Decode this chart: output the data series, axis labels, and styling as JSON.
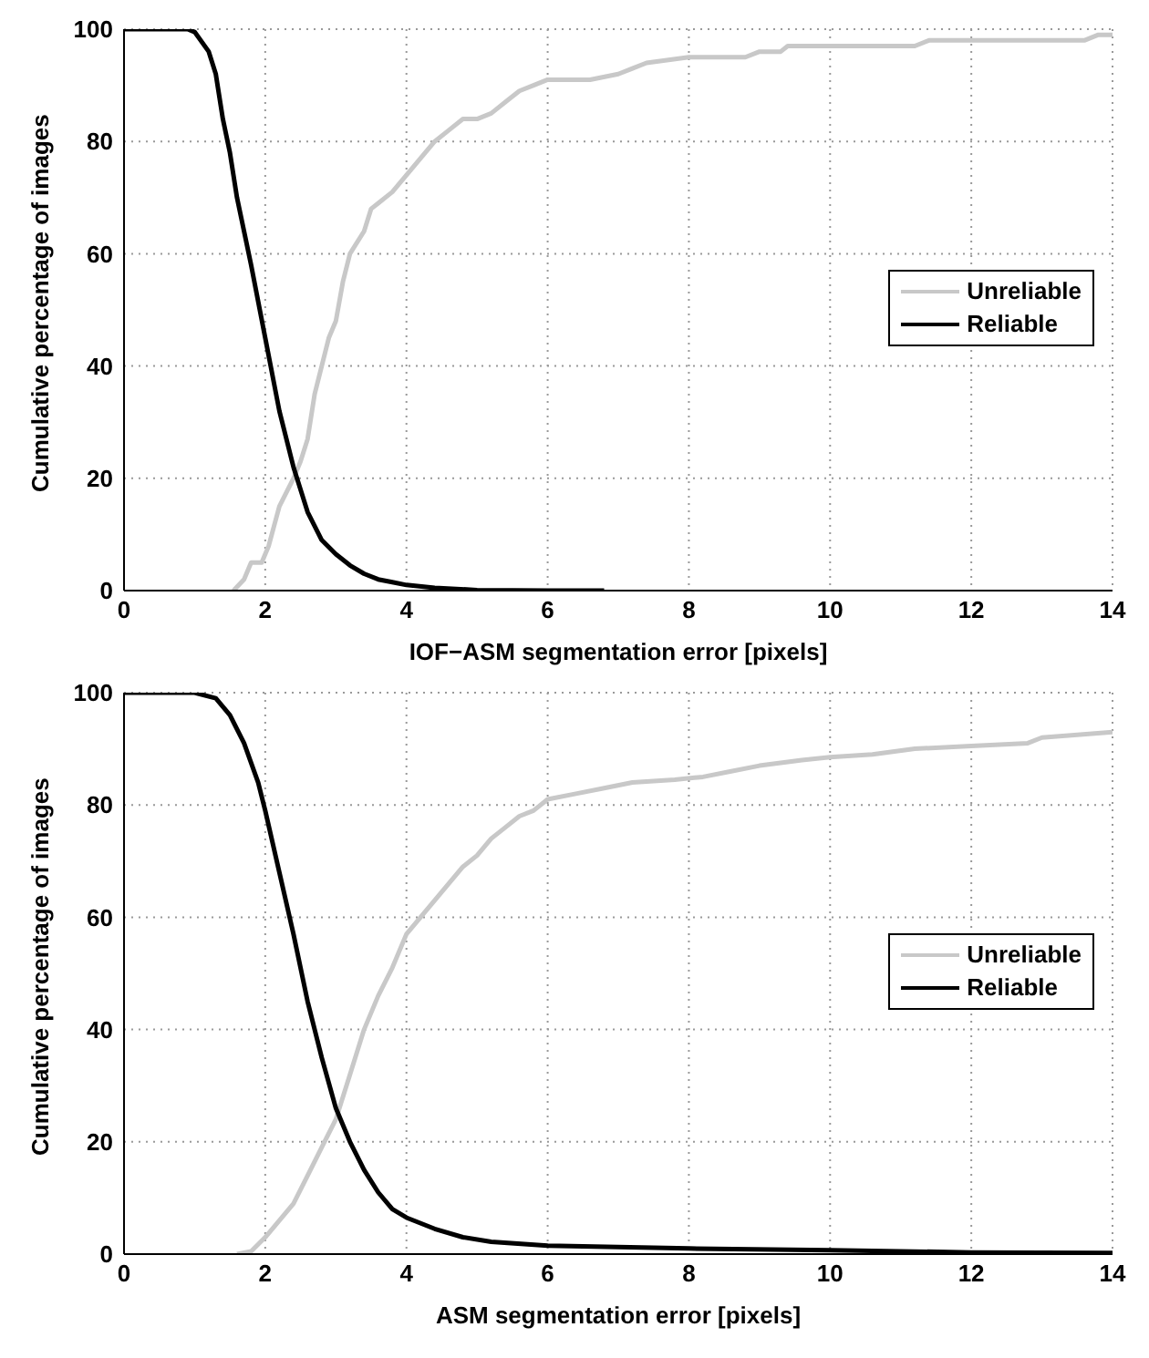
{
  "chart_data": [
    {
      "type": "line",
      "xlabel": "IOF−ASM segmentation error [pixels]",
      "ylabel": "Cumulative percentage of images",
      "xlim": [
        0,
        14
      ],
      "xticks": [
        0,
        2,
        4,
        6,
        8,
        10,
        12,
        14
      ],
      "ylim": [
        0,
        100
      ],
      "yticks": [
        0,
        20,
        40,
        60,
        80,
        100
      ],
      "grid": true,
      "legend": "right",
      "series": [
        {
          "name": "Unreliable",
          "color": "#c8c8c8",
          "x": [
            1.55,
            1.7,
            1.8,
            1.95,
            2.05,
            2.2,
            2.4,
            2.5,
            2.6,
            2.7,
            2.8,
            2.9,
            3.0,
            3.1,
            3.2,
            3.4,
            3.5,
            3.6,
            3.8,
            4.0,
            4.2,
            4.4,
            4.6,
            4.8,
            5.0,
            5.2,
            5.4,
            5.6,
            5.8,
            6.0,
            6.6,
            7.0,
            7.2,
            7.4,
            8.0,
            8.8,
            9.0,
            9.3,
            9.4,
            11.2,
            11.4,
            13.6,
            13.8,
            14
          ],
          "values": [
            0,
            2,
            5,
            5,
            8,
            15,
            20,
            23,
            27,
            35,
            40,
            45,
            48,
            55,
            60,
            64,
            68,
            69,
            71,
            74,
            77,
            80,
            82,
            84,
            84,
            85,
            87,
            89,
            90,
            91,
            91,
            92,
            93,
            94,
            95,
            95,
            96,
            96,
            97,
            97,
            98,
            98,
            99,
            99
          ]
        },
        {
          "name": "Reliable",
          "color": "#000000",
          "x": [
            0,
            0.9,
            1.0,
            1.2,
            1.3,
            1.4,
            1.5,
            1.6,
            1.8,
            2.0,
            2.2,
            2.4,
            2.6,
            2.8,
            3.0,
            3.2,
            3.4,
            3.6,
            3.8,
            4.0,
            4.4,
            5.0,
            6.0,
            6.8
          ],
          "values": [
            100,
            100,
            99.5,
            96,
            92,
            84,
            78,
            70,
            58,
            45,
            32,
            22,
            14,
            9,
            6.5,
            4.5,
            3,
            2,
            1.5,
            1,
            0.5,
            0.1,
            0,
            0
          ]
        }
      ]
    },
    {
      "type": "line",
      "xlabel": "ASM segmentation error [pixels]",
      "ylabel": "Cumulative percentage of images",
      "xlim": [
        0,
        14
      ],
      "xticks": [
        0,
        2,
        4,
        6,
        8,
        10,
        12,
        14
      ],
      "ylim": [
        0,
        100
      ],
      "yticks": [
        0,
        20,
        40,
        60,
        80,
        100
      ],
      "grid": true,
      "legend": "right",
      "series": [
        {
          "name": "Unreliable",
          "color": "#c8c8c8",
          "x": [
            1.6,
            1.8,
            2.0,
            2.2,
            2.4,
            2.6,
            2.8,
            3.0,
            3.2,
            3.4,
            3.6,
            3.8,
            4.0,
            4.2,
            4.4,
            4.6,
            4.8,
            5.0,
            5.2,
            5.4,
            5.6,
            5.8,
            6.0,
            6.4,
            6.8,
            7.2,
            7.8,
            8.2,
            8.6,
            9.0,
            9.6,
            10.0,
            10.6,
            11.2,
            12,
            12.8,
            13,
            14
          ],
          "values": [
            0,
            0.5,
            3,
            6,
            9,
            14,
            19,
            24,
            32,
            40,
            46,
            51,
            57,
            60,
            63,
            66,
            69,
            71,
            74,
            76,
            78,
            79,
            81,
            82,
            83,
            84,
            84.5,
            85,
            86,
            87,
            88,
            88.5,
            89,
            90,
            90.5,
            91,
            92,
            93
          ]
        },
        {
          "name": "Reliable",
          "color": "#000000",
          "x": [
            0,
            1.0,
            1.3,
            1.5,
            1.7,
            1.9,
            2.0,
            2.2,
            2.4,
            2.6,
            2.8,
            3.0,
            3.2,
            3.4,
            3.6,
            3.8,
            4.0,
            4.4,
            4.8,
            5.2,
            6,
            8,
            10,
            12,
            14
          ],
          "values": [
            100,
            100,
            99,
            96,
            91,
            84,
            79,
            68,
            57,
            45,
            35,
            26,
            20,
            15,
            11,
            8,
            6.5,
            4.5,
            3,
            2.2,
            1.5,
            1,
            0.7,
            0.3,
            0.2
          ]
        }
      ]
    }
  ]
}
